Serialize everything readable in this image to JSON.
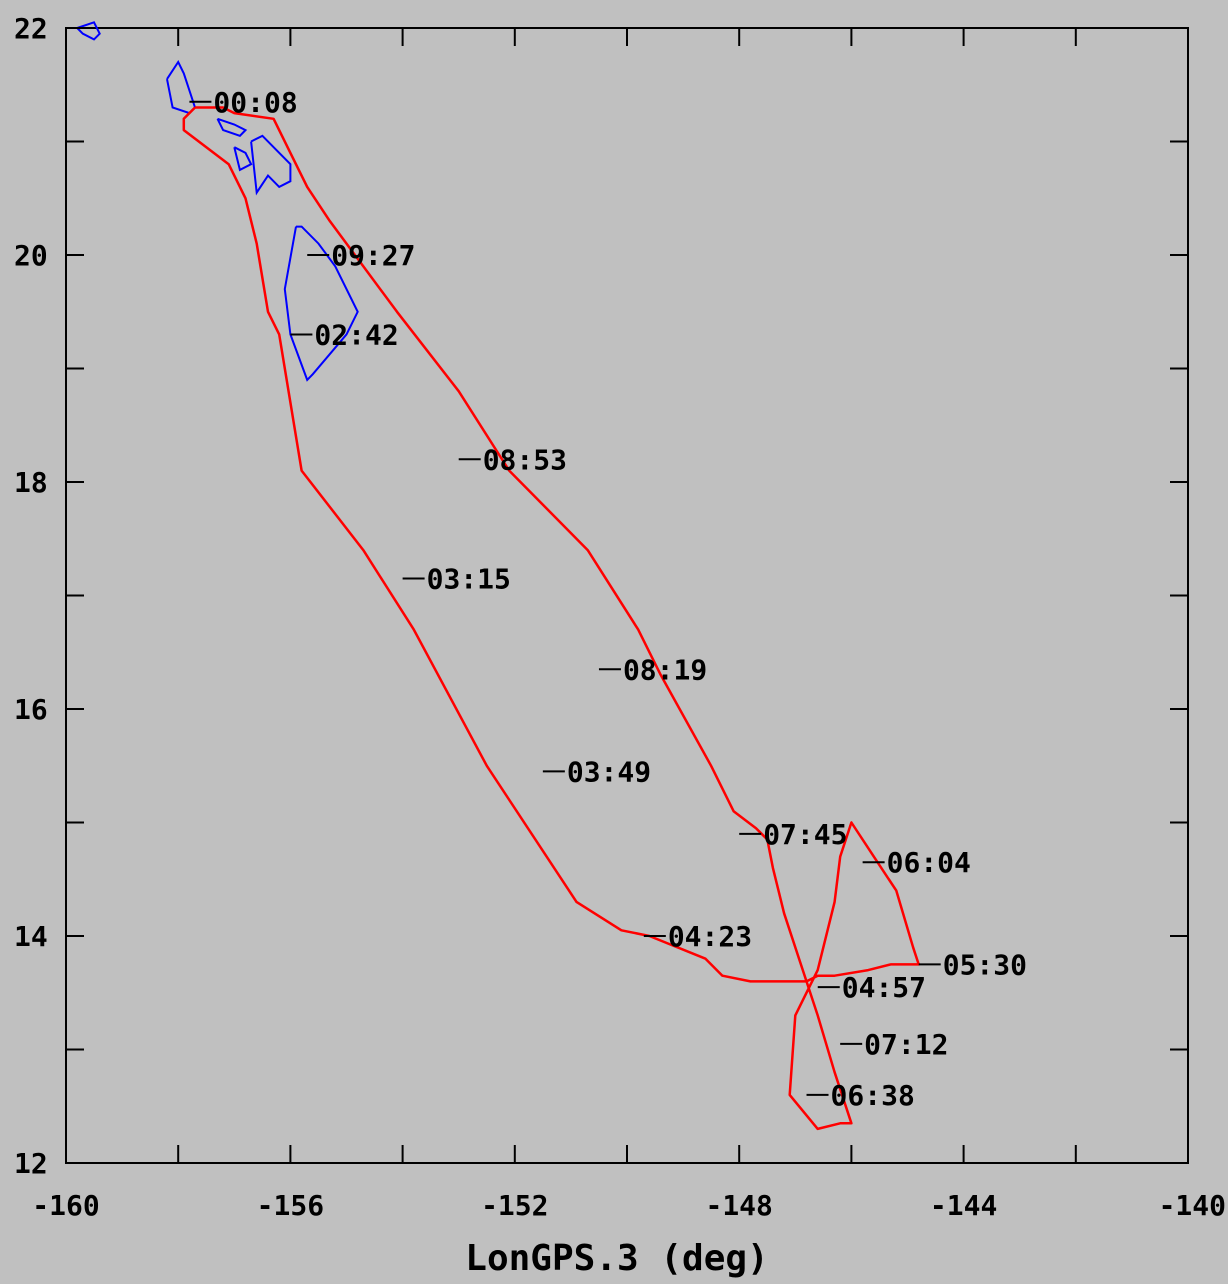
{
  "chart_data": {
    "type": "line",
    "title": "",
    "xlabel": "LonGPS.3 (deg)",
    "ylabel": "",
    "xlim": [
      -160,
      -140
    ],
    "ylim": [
      12,
      22
    ],
    "xticks": [
      -160,
      -156,
      -152,
      -148,
      -144,
      -140
    ],
    "xtick_labels": [
      "-160",
      "-156",
      "-152",
      "-148",
      "-144",
      "-140"
    ],
    "yticks": [
      12,
      14,
      16,
      18,
      20,
      22
    ],
    "ytick_labels": [
      "12",
      "14",
      "16",
      "18",
      "20",
      "22"
    ],
    "grid": false,
    "series": [
      {
        "color": "#ff0000",
        "x": [
          -157.7,
          -157.9,
          -157.9,
          -157.1,
          -156.8,
          -156.6,
          -156.4,
          -156.2,
          -155.8,
          -154.7,
          -153.8,
          -152.5,
          -150.9,
          -150.1,
          -149.6,
          -148.6,
          -148.3,
          -147.8,
          -146.8,
          -146.6,
          -146.3,
          -145.7,
          -145.3,
          -144.8,
          -144.9,
          -145.2,
          -145.6,
          -146.0,
          -146.2,
          -146.3,
          -146.6,
          -147.0,
          -147.1,
          -146.6,
          -146.2,
          -146.0,
          -146.3,
          -146.6,
          -146.9,
          -147.2,
          -147.4,
          -147.5,
          -147.7,
          -148.1,
          -148.5,
          -149.4,
          -149.8,
          -150.7,
          -152.1,
          -153.0,
          -154.1,
          -155.3,
          -155.7,
          -156.0,
          -156.3,
          -157.0,
          -157.2,
          -157.7
        ],
        "y": [
          21.3,
          21.2,
          21.1,
          20.8,
          20.5,
          20.1,
          19.5,
          19.3,
          18.1,
          17.4,
          16.7,
          15.5,
          14.3,
          14.05,
          14.0,
          13.8,
          13.65,
          13.6,
          13.6,
          13.65,
          13.65,
          13.7,
          13.75,
          13.75,
          13.9,
          14.4,
          14.7,
          15.0,
          14.7,
          14.3,
          13.7,
          13.3,
          12.6,
          12.3,
          12.35,
          12.35,
          12.8,
          13.3,
          13.75,
          14.2,
          14.6,
          14.85,
          14.95,
          15.1,
          15.5,
          16.3,
          16.7,
          17.4,
          18.1,
          18.8,
          19.5,
          20.3,
          20.6,
          20.9,
          21.2,
          21.25,
          21.3,
          21.3
        ]
      }
    ],
    "time_labels": [
      {
        "text": "00:08",
        "x": -157.8,
        "y": 21.35
      },
      {
        "text": "09:27",
        "x": -155.7,
        "y": 20.0
      },
      {
        "text": "02:42",
        "x": -156.0,
        "y": 19.3
      },
      {
        "text": "08:53",
        "x": -153.0,
        "y": 18.2
      },
      {
        "text": "03:15",
        "x": -154.0,
        "y": 17.15
      },
      {
        "text": "08:19",
        "x": -150.5,
        "y": 16.35
      },
      {
        "text": "03:49",
        "x": -151.5,
        "y": 15.45
      },
      {
        "text": "07:45",
        "x": -148.0,
        "y": 14.9
      },
      {
        "text": "06:04",
        "x": -145.8,
        "y": 14.65
      },
      {
        "text": "04:23",
        "x": -149.7,
        "y": 14.0
      },
      {
        "text": "05:30",
        "x": -144.8,
        "y": 13.75
      },
      {
        "text": "04:57",
        "x": -146.6,
        "y": 13.55
      },
      {
        "text": "07:12",
        "x": -146.2,
        "y": 13.05
      },
      {
        "text": "06:38",
        "x": -146.8,
        "y": 12.6
      }
    ],
    "coastlines": [
      {
        "color": "#0000ff",
        "x": [
          -159.8,
          -159.7,
          -159.5,
          -159.4,
          -159.5,
          -159.8
        ],
        "y": [
          22.0,
          21.95,
          21.9,
          21.95,
          22.05,
          22.0
        ]
      },
      {
        "color": "#0000ff",
        "x": [
          -158.2,
          -158.0,
          -157.9,
          -157.7,
          -157.8,
          -158.1,
          -158.2
        ],
        "y": [
          21.55,
          21.7,
          21.6,
          21.3,
          21.25,
          21.3,
          21.55
        ]
      },
      {
        "color": "#0000ff",
        "x": [
          -157.3,
          -157.0,
          -156.8,
          -156.9,
          -157.2,
          -157.3
        ],
        "y": [
          21.2,
          21.15,
          21.1,
          21.05,
          21.1,
          21.2
        ]
      },
      {
        "color": "#0000ff",
        "x": [
          -157.0,
          -156.8,
          -156.7,
          -156.9,
          -157.0
        ],
        "y": [
          20.95,
          20.9,
          20.8,
          20.75,
          20.95
        ]
      },
      {
        "color": "#0000ff",
        "x": [
          -156.7,
          -156.5,
          -156.3,
          -156.0,
          -156.0,
          -156.2,
          -156.4,
          -156.6,
          -156.7
        ],
        "y": [
          21.0,
          21.05,
          20.95,
          20.8,
          20.65,
          20.6,
          20.7,
          20.55,
          21.0
        ]
      },
      {
        "color": "#0000ff",
        "x": [
          -155.9,
          -155.8,
          -155.5,
          -155.2,
          -154.8,
          -155.0,
          -155.6,
          -155.7,
          -156.0,
          -156.1,
          -155.9
        ],
        "y": [
          20.25,
          20.25,
          20.1,
          19.9,
          19.5,
          19.3,
          18.95,
          18.9,
          19.3,
          19.7,
          20.25
        ]
      }
    ]
  }
}
